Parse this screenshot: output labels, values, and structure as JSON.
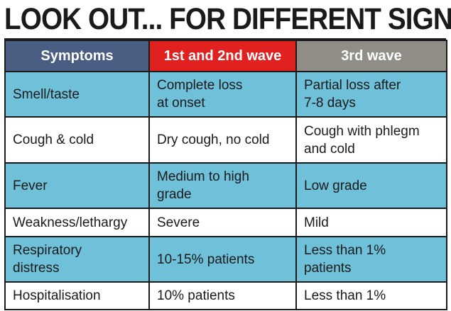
{
  "headline": "LOOK OUT... FOR DIFFERENT SIGNS",
  "table": {
    "headers": [
      "Symptoms",
      "1st and 2nd wave",
      "3rd wave"
    ],
    "rows": [
      [
        "Smell/taste",
        "Complete loss\nat onset",
        "Partial loss after\n7-8 days"
      ],
      [
        "Cough & cold",
        "Dry cough, no cold",
        "Cough with phlegm\nand cold"
      ],
      [
        "Fever",
        "Medium to high\ngrade",
        "Low grade"
      ],
      [
        "Weakness/lethargy",
        "Severe",
        "Mild"
      ],
      [
        "Respiratory\ndistress",
        "10-15% patients",
        "Less than 1%\npatients"
      ],
      [
        "Hospitalisation",
        "10% patients",
        "Less than 1%"
      ]
    ]
  },
  "colors": {
    "header_symptoms": "#4a5d82",
    "header_wave_1_2": "#e0211f",
    "header_wave_3": "#908e86",
    "row_shaded": "#6fc0d9",
    "row_plain": "#ffffff",
    "border": "#1a1a1a"
  }
}
